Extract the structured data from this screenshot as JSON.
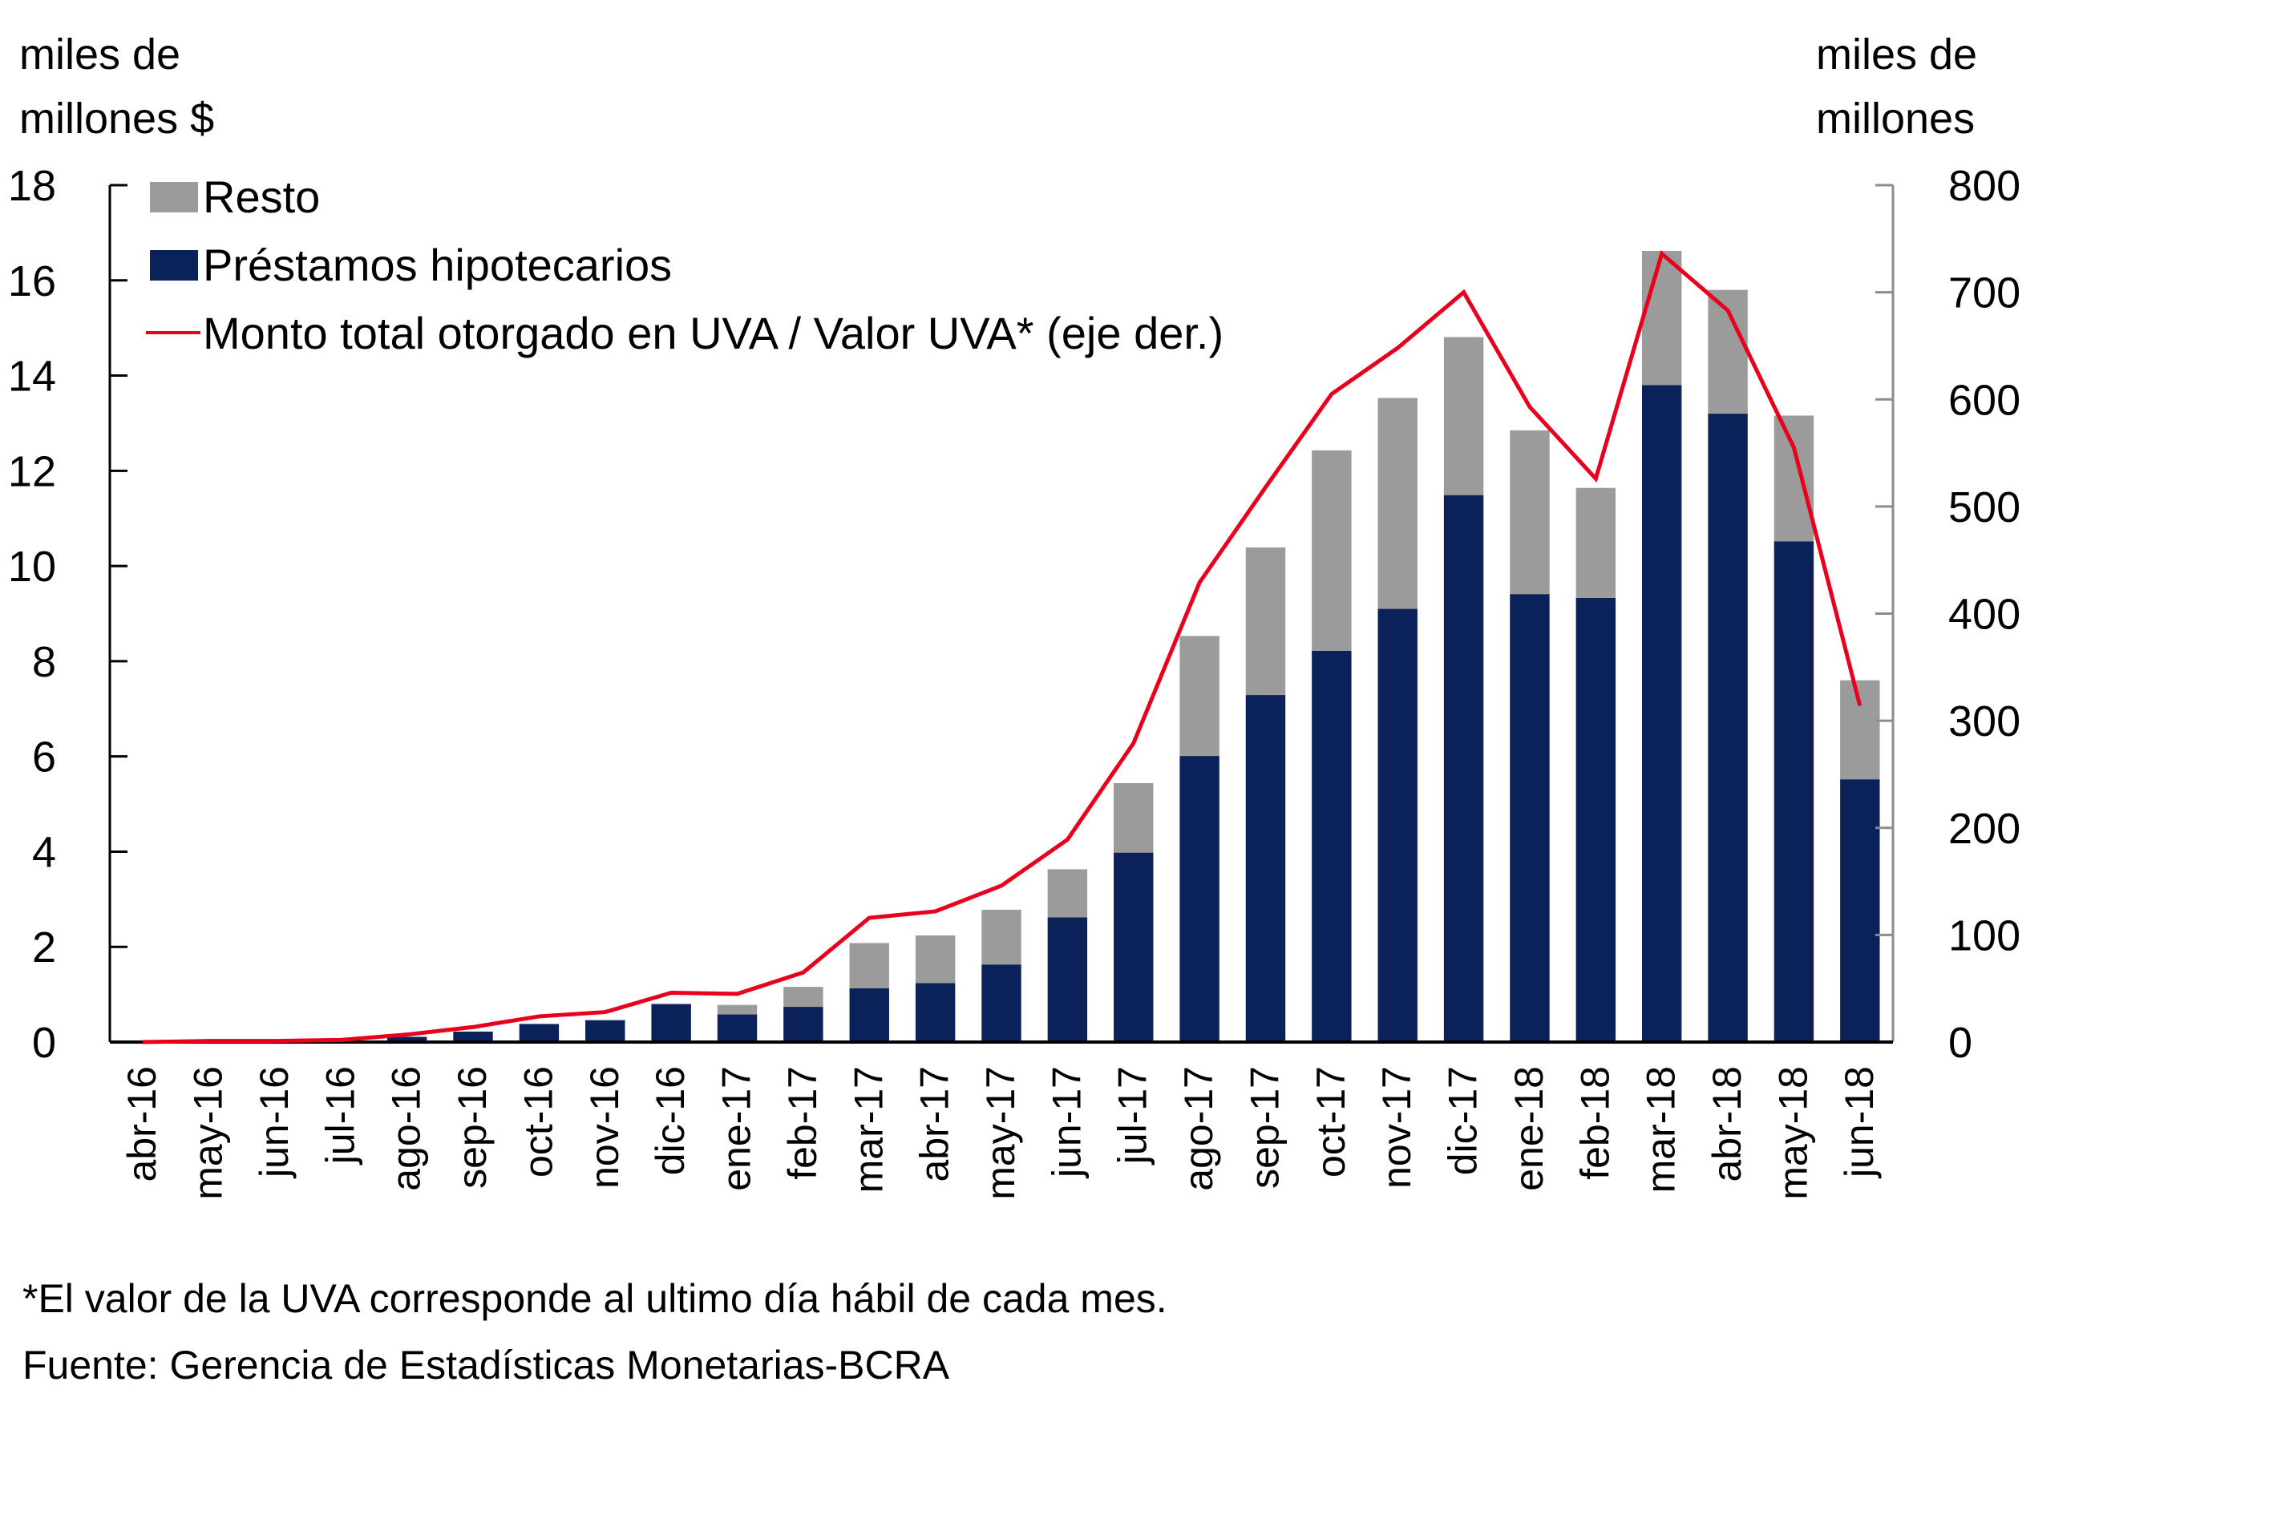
{
  "chart_data": {
    "type": "bar",
    "stacked": true,
    "categories": [
      "abr-16",
      "may-16",
      "jun-16",
      "jul-16",
      "ago-16",
      "sep-16",
      "oct-16",
      "nov-16",
      "dic-16",
      "ene-17",
      "feb-17",
      "mar-17",
      "abr-17",
      "may-17",
      "jun-17",
      "jul-17",
      "ago-17",
      "sep-17",
      "oct-17",
      "nov-17",
      "dic-17",
      "ene-18",
      "feb-18",
      "mar-18",
      "abr-18",
      "may-18",
      "jun-18"
    ],
    "series": [
      {
        "name": "Préstamos hipotecarios",
        "kind": "bar",
        "axis": "left",
        "color": "#0b2159",
        "values": [
          0.0,
          0.01,
          0.02,
          0.04,
          0.11,
          0.22,
          0.38,
          0.46,
          0.8,
          0.58,
          0.74,
          1.13,
          1.24,
          1.63,
          2.62,
          3.98,
          6.01,
          7.29,
          8.22,
          9.1,
          11.49,
          9.41,
          9.33,
          13.8,
          13.2,
          10.52,
          5.52
        ]
      },
      {
        "name": "Resto",
        "kind": "bar",
        "axis": "left",
        "color": "#9b9b9b",
        "values": [
          0.0,
          0.0,
          0.0,
          0.0,
          0.0,
          0.0,
          0.0,
          0.0,
          0.0,
          0.2,
          0.42,
          0.95,
          1.0,
          1.15,
          1.01,
          1.46,
          2.52,
          3.1,
          4.21,
          4.43,
          3.32,
          3.44,
          2.31,
          2.82,
          2.6,
          2.64,
          2.08
        ]
      },
      {
        "name": "Monto total otorgado en UVA / Valor UVA* (eje der.)",
        "kind": "line",
        "axis": "right",
        "color": "#e8001c",
        "values": [
          0,
          1,
          1,
          2,
          7,
          14,
          24,
          28,
          46,
          45,
          65,
          116,
          122,
          146,
          189,
          279,
          429,
          518,
          605,
          648,
          700,
          593,
          526,
          736,
          683,
          555,
          314
        ]
      }
    ],
    "title": "",
    "ylabel": "miles de millones $",
    "ylabel_right": "miles de millones",
    "ylim": [
      0,
      18
    ],
    "ylim_right": [
      0,
      800
    ],
    "yticks": [
      "0",
      "2",
      "4",
      "6",
      "8",
      "10",
      "12",
      "14",
      "16",
      "18"
    ],
    "yticks_right": [
      "0",
      "100",
      "200",
      "300",
      "400",
      "500",
      "600",
      "700",
      "800"
    ],
    "grid": false,
    "legend_position": "top-left",
    "legend": [
      {
        "label": "Resto",
        "type": "box",
        "color": "#9b9b9b"
      },
      {
        "label": "Préstamos hipotecarios",
        "type": "box",
        "color": "#0b2159"
      },
      {
        "label": "Monto total otorgado en UVA / Valor UVA* (eje der.)",
        "type": "line",
        "color": "#e8001c"
      }
    ]
  },
  "axis_titles": {
    "left_line1": "miles de",
    "left_line2": "millones $",
    "right_line1": "miles de",
    "right_line2": "millones"
  },
  "footnotes": {
    "note": "*El valor de la UVA corresponde  al ultimo día hábil de cada mes.",
    "source": "Fuente: Gerencia de Estadísticas Monetarias-BCRA"
  }
}
